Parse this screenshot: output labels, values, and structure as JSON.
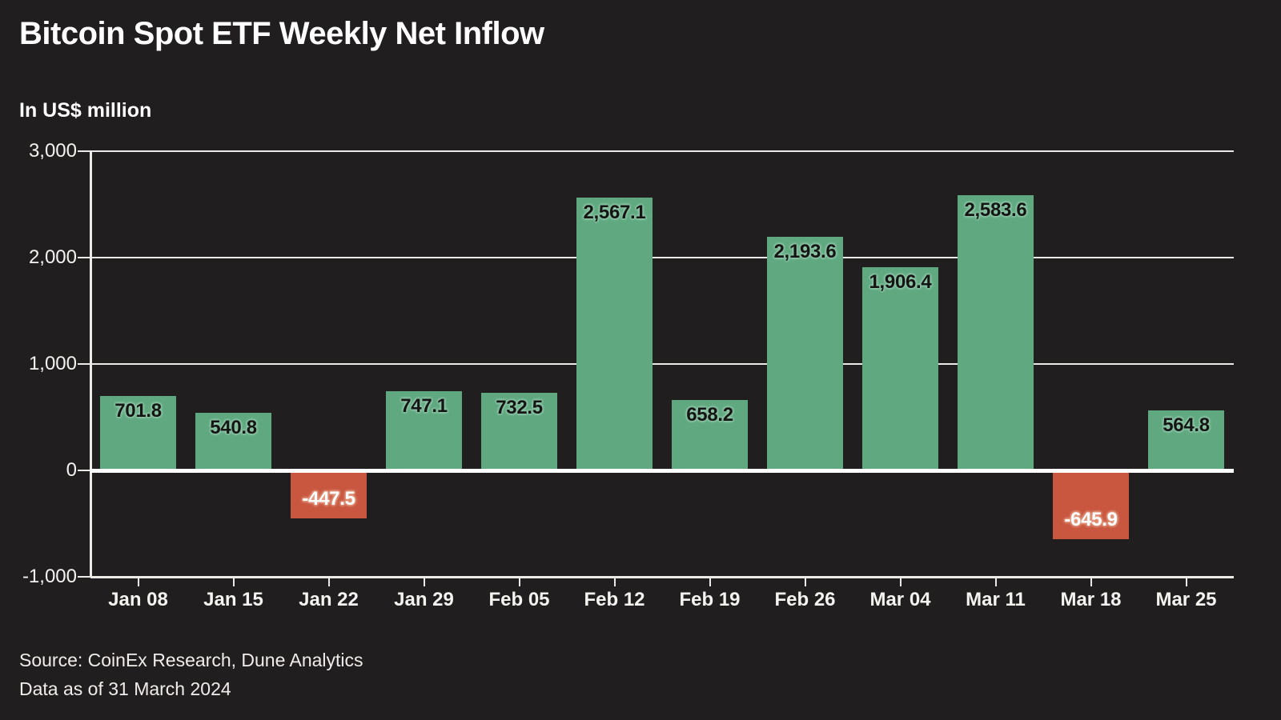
{
  "header": {
    "title": "Bitcoin Spot ETF Weekly Net Inflow",
    "subtitle": "In US$ million"
  },
  "footer": {
    "source": "Source: CoinEx Research, Dune Analytics",
    "note": "Data as of 31 March 2024"
  },
  "colors": {
    "background": "#201e1e",
    "positive_bar": "#5fa880",
    "negative_bar": "#c95740",
    "gridline": "#eceae7",
    "zero_line": "#ffffff",
    "axis_text": "#f5f3f0",
    "title_text": "#ffffff",
    "source_text": "#f0edea",
    "positive_label_text": "#151515",
    "positive_label_halo": "#8fc7a7",
    "negative_label_text": "#ffffff",
    "negative_label_halo": "#e39a81"
  },
  "chart_data": {
    "type": "bar",
    "title": "Bitcoin Spot ETF Weekly Net Inflow",
    "unit_label": "In US$ million",
    "categories": [
      "Jan 08",
      "Jan 15",
      "Jan 22",
      "Jan 29",
      "Feb 05",
      "Feb 12",
      "Feb 19",
      "Feb 26",
      "Mar 04",
      "Mar 11",
      "Mar 18",
      "Mar 25"
    ],
    "values": [
      701.8,
      540.8,
      -447.5,
      747.1,
      732.5,
      2567.1,
      658.2,
      2193.6,
      1906.4,
      2583.6,
      -645.9,
      564.8
    ],
    "value_labels": [
      "701.8",
      "540.8",
      "-447.5",
      "747.1",
      "732.5",
      "2,567.1",
      "658.2",
      "2,193.6",
      "1,906.4",
      "2,583.6",
      "-645.9",
      "564.8"
    ],
    "xlabel": "",
    "ylabel": "In US$ million",
    "ylim": [
      -1000,
      3000
    ],
    "y_ticks": [
      {
        "value": 3000,
        "label": "3,000"
      },
      {
        "value": 2000,
        "label": "2,000"
      },
      {
        "value": 1000,
        "label": "1,000"
      },
      {
        "value": 0,
        "label": "0"
      },
      {
        "value": -1000,
        "label": "-1,000"
      }
    ],
    "grid": true,
    "legend": "none"
  }
}
